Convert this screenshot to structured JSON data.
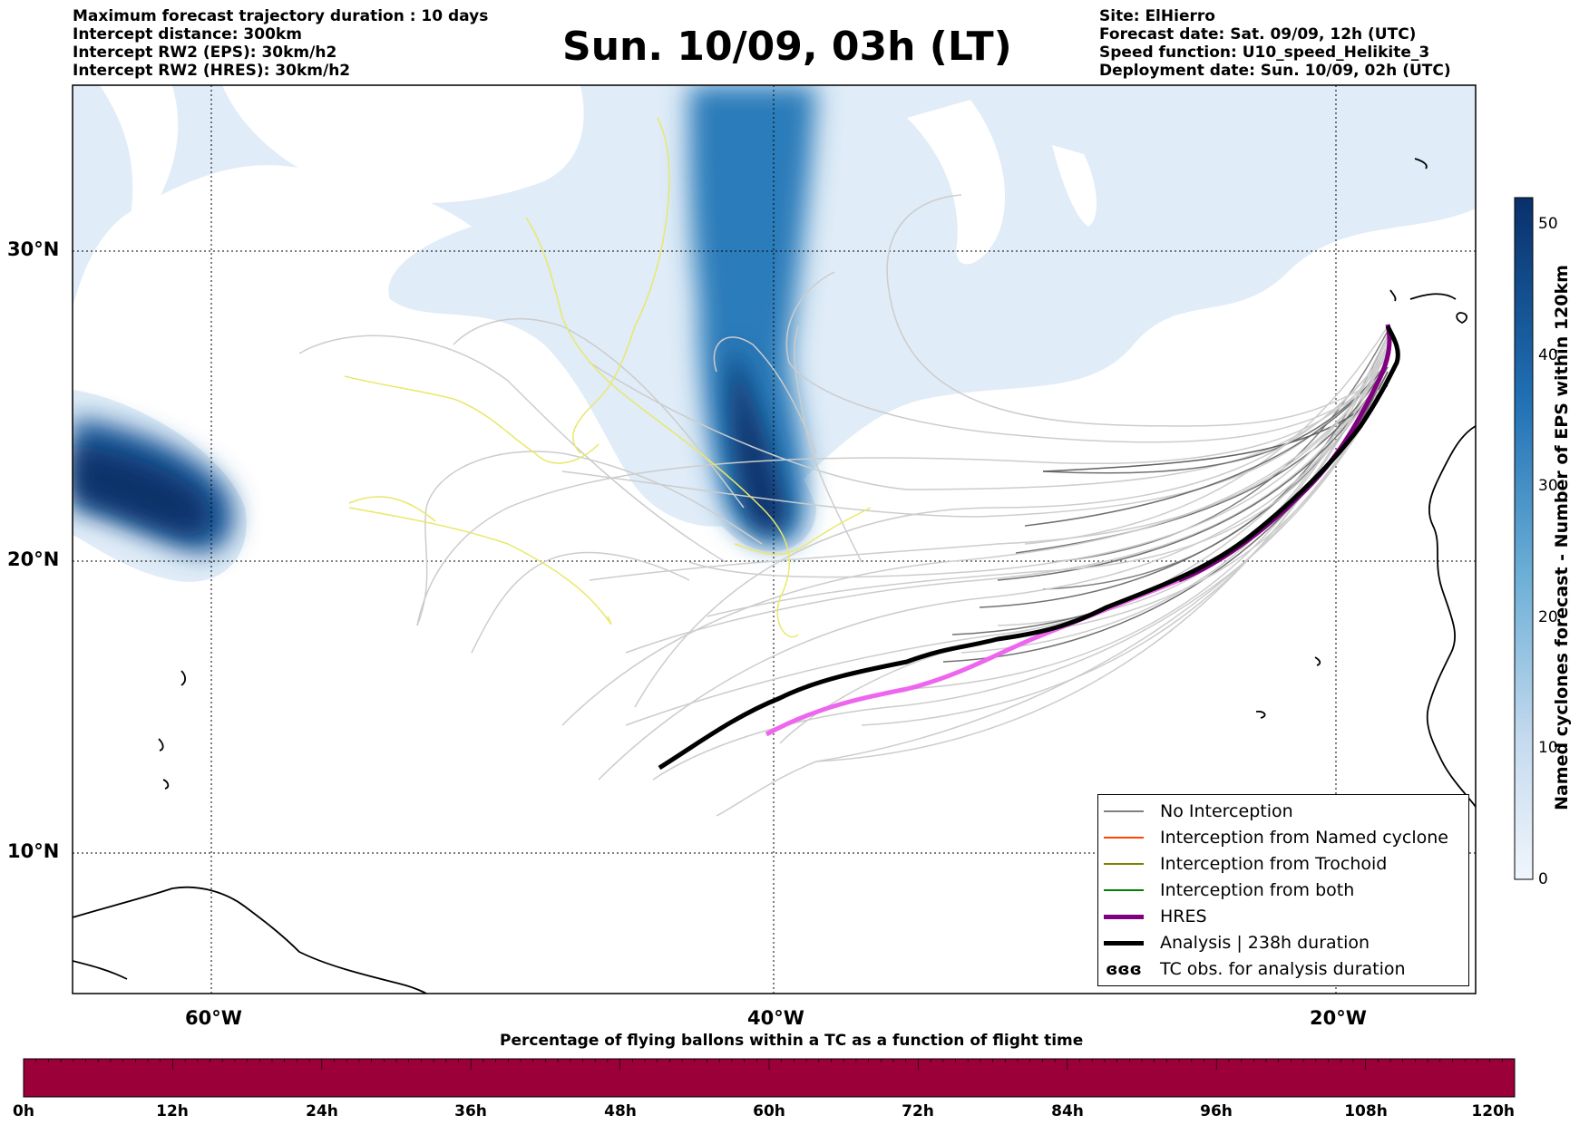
{
  "header": {
    "left_lines": [
      "Maximum forecast trajectory duration : 10 days",
      "Intercept distance: 300km",
      "Intercept RW2 (EPS):  30km/h2",
      "Intercept RW2 (HRES): 30km/h2"
    ],
    "title": "Sun. 10/09, 03h (LT)",
    "right_lines": [
      "Site: ElHierro",
      "Forecast date: Sat. 09/09, 12h (UTC)",
      "Speed function: U10_speed_Helikite_3",
      "Deployment date: Sun. 10/09, 02h (UTC)"
    ]
  },
  "map": {
    "lat_labels": [
      "30°N",
      "20°N",
      "10°N"
    ],
    "lon_labels": [
      "60°W",
      "40°W",
      "20°W"
    ],
    "lat_range": [
      5.3,
      34.6
    ],
    "lon_range": [
      -65,
      -15
    ]
  },
  "legend": {
    "items": [
      {
        "label": "No Interception",
        "color": "#808080"
      },
      {
        "label": "Interception from Named cyclone",
        "color": "#ff4500"
      },
      {
        "label": "Interception from Trochoid",
        "color": "#808000"
      },
      {
        "label": "Interception from both",
        "color": "#008000"
      },
      {
        "label": "HRES",
        "color": "#800080"
      },
      {
        "label": "Analysis | 238h duration",
        "color": "#000000"
      },
      {
        "label": "TC obs. for analysis duration",
        "color": "#000000"
      }
    ]
  },
  "colorbar": {
    "label": "Named cyclones forecast - Number of EPS within 120km",
    "ticks": [
      "0",
      "10",
      "20",
      "30",
      "40",
      "50"
    ],
    "max": 52,
    "color_low": "#f0f6fc",
    "color_high": "#08306b"
  },
  "bottom_bar": {
    "title": "Percentage of flying ballons within a TC as a function of flight time",
    "ticks": [
      "0h",
      "12h",
      "24h",
      "36h",
      "48h",
      "60h",
      "72h",
      "84h",
      "96h",
      "108h",
      "120h"
    ],
    "color": "#9b0038"
  }
}
